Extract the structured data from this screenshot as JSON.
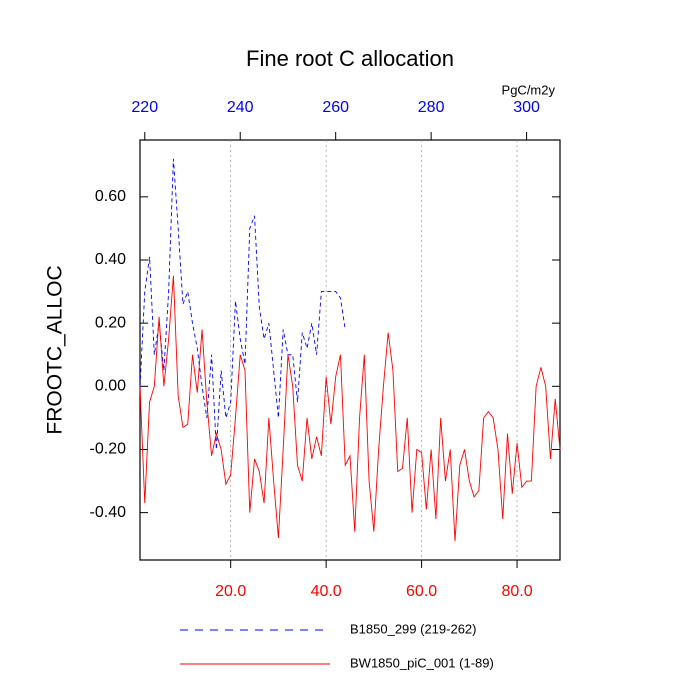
{
  "chart_data": {
    "type": "line",
    "title": "Fine root C allocation",
    "ylabel": "FROOTC_ALLOC",
    "x2label": "PgC/m2y",
    "xlim": [
      1,
      89
    ],
    "xticks": [
      {
        "value": 20,
        "label": "20.0"
      },
      {
        "value": 40,
        "label": "40.0"
      },
      {
        "value": 60,
        "label": "60.0"
      },
      {
        "value": 80,
        "label": "80.0"
      }
    ],
    "x2lim": [
      219,
      307
    ],
    "x2ticks": [
      220,
      240,
      260,
      280,
      300
    ],
    "ylim": [
      -0.55,
      0.78
    ],
    "yticks": [
      {
        "value": -0.4,
        "label": "-0.40"
      },
      {
        "value": -0.2,
        "label": "-0.20"
      },
      {
        "value": 0,
        "label": "0.00"
      },
      {
        "value": 0.2,
        "label": "0.20"
      },
      {
        "value": 0.4,
        "label": "0.40"
      },
      {
        "value": 0.6,
        "label": "0.60"
      }
    ],
    "xtick_color": "#ff0000",
    "x2tick_color": "#0000ff",
    "grid": "x",
    "series": [
      {
        "name": "B1850_299 (219-262)",
        "color": "#0000ff",
        "dash": true,
        "axis": "x2",
        "x": [
          219,
          220,
          221,
          222,
          223,
          224,
          225,
          226,
          227,
          228,
          229,
          230,
          231,
          232,
          233,
          234,
          235,
          236,
          237,
          238,
          239,
          240,
          241,
          242,
          243,
          244,
          245,
          246,
          247,
          248,
          249,
          250,
          251,
          252,
          253,
          254,
          255,
          256,
          257,
          258,
          259,
          260,
          261,
          262
        ],
        "values": [
          0.0,
          0.3,
          0.41,
          0.1,
          0.2,
          0.05,
          0.3,
          0.72,
          0.5,
          0.26,
          0.3,
          0.2,
          0.12,
          0.0,
          -0.1,
          0.1,
          -0.2,
          0.05,
          -0.1,
          -0.05,
          0.27,
          0.15,
          0.07,
          0.5,
          0.54,
          0.25,
          0.15,
          0.2,
          0.05,
          -0.1,
          0.18,
          0.1,
          0.1,
          -0.05,
          0.17,
          0.12,
          0.2,
          0.1,
          0.3,
          0.3,
          0.3,
          0.3,
          0.28,
          0.18
        ]
      },
      {
        "name": "BW1850_piC_001 (1-89)",
        "color": "#ff0000",
        "dash": false,
        "x": [
          1,
          2,
          3,
          4,
          5,
          6,
          7,
          8,
          9,
          10,
          11,
          12,
          13,
          14,
          15,
          16,
          17,
          18,
          19,
          20,
          21,
          22,
          23,
          24,
          25,
          26,
          27,
          28,
          29,
          30,
          31,
          32,
          33,
          34,
          35,
          36,
          37,
          38,
          39,
          40,
          41,
          42,
          43,
          44,
          45,
          46,
          47,
          48,
          49,
          50,
          51,
          52,
          53,
          54,
          55,
          56,
          57,
          58,
          59,
          60,
          61,
          62,
          63,
          64,
          65,
          66,
          67,
          68,
          69,
          70,
          71,
          72,
          73,
          74,
          75,
          76,
          77,
          78,
          79,
          80,
          81,
          82,
          83,
          84,
          85,
          86,
          87,
          88,
          89
        ],
        "values": [
          0.0,
          -0.37,
          -0.05,
          0.0,
          0.22,
          0.0,
          0.15,
          0.35,
          -0.03,
          -0.13,
          -0.12,
          0.1,
          -0.02,
          0.18,
          -0.05,
          -0.22,
          -0.15,
          -0.2,
          -0.31,
          -0.28,
          -0.1,
          0.1,
          0.05,
          -0.4,
          -0.23,
          -0.27,
          -0.37,
          -0.1,
          -0.3,
          -0.48,
          -0.2,
          0.1,
          0.0,
          -0.25,
          -0.3,
          -0.1,
          -0.23,
          -0.16,
          -0.22,
          0.03,
          -0.12,
          0.03,
          0.1,
          -0.25,
          -0.22,
          -0.46,
          -0.1,
          0.1,
          -0.3,
          -0.46,
          -0.2,
          0.0,
          0.17,
          0.05,
          -0.27,
          -0.26,
          -0.1,
          -0.4,
          -0.2,
          -0.21,
          -0.39,
          -0.2,
          -0.42,
          -0.1,
          -0.3,
          -0.2,
          -0.49,
          -0.25,
          -0.2,
          -0.3,
          -0.35,
          -0.33,
          -0.1,
          -0.08,
          -0.1,
          -0.2,
          -0.42,
          -0.15,
          -0.34,
          -0.18,
          -0.32,
          -0.3,
          -0.3,
          0.0,
          0.06,
          0.0,
          -0.23,
          -0.04,
          -0.2
        ]
      }
    ]
  }
}
